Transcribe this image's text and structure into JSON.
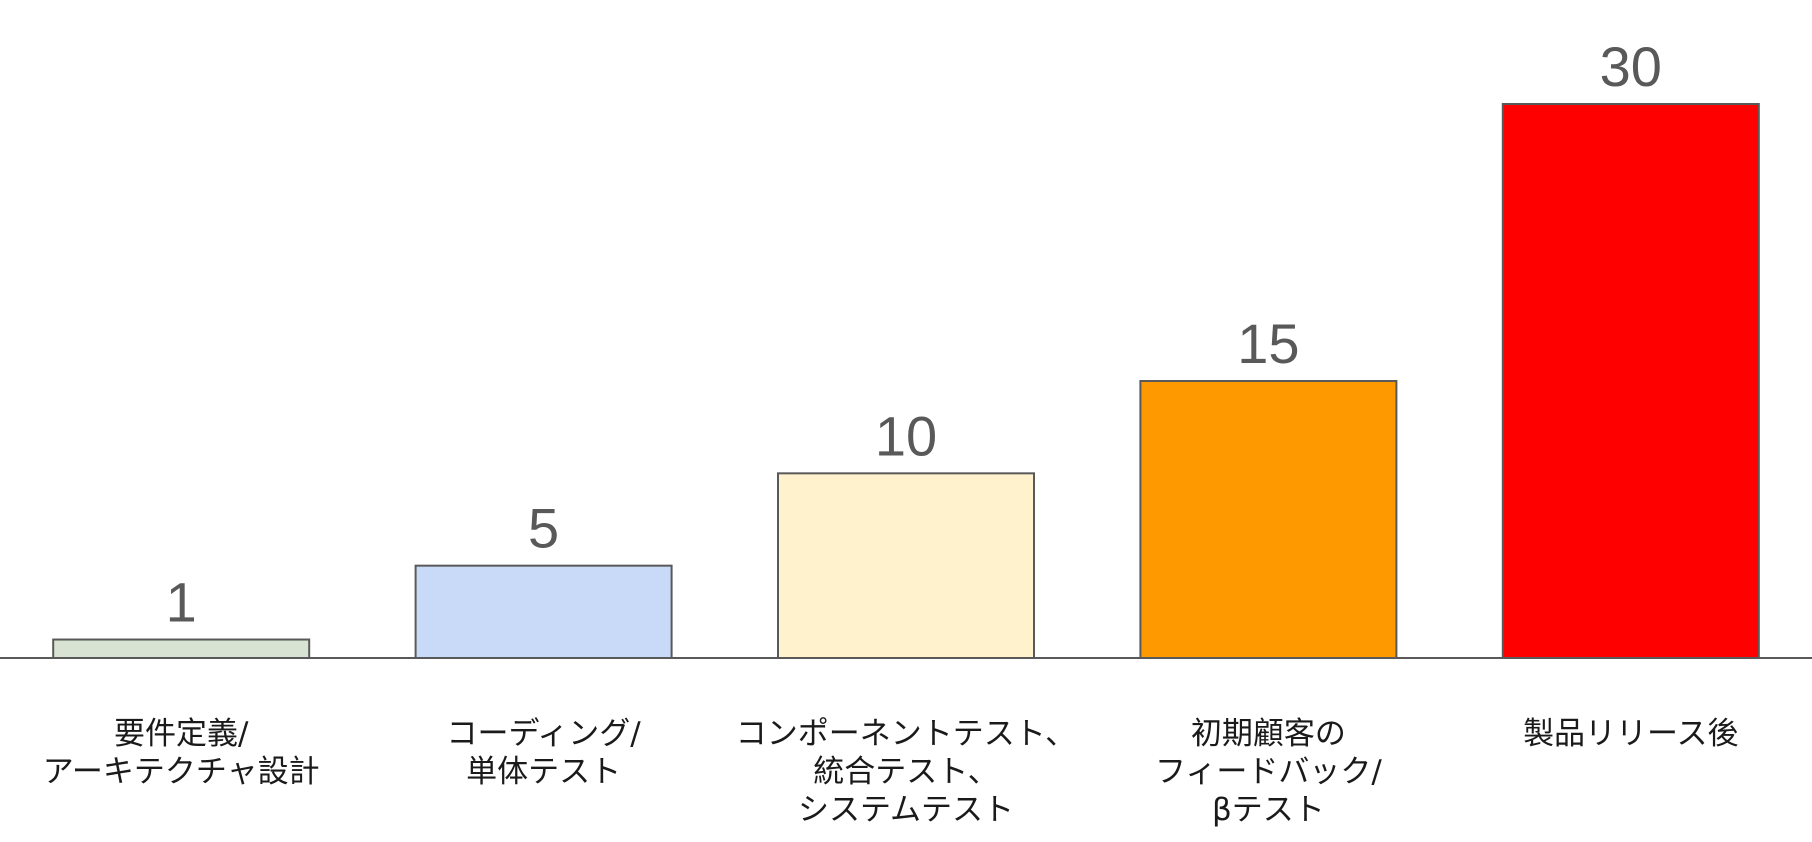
{
  "chart_data": {
    "type": "bar",
    "title": "",
    "xlabel": "",
    "ylabel": "",
    "ylim": [
      0,
      30
    ],
    "grid": false,
    "legend": "none",
    "categories": [
      [
        "要件定義/",
        "アーキテクチャ設計"
      ],
      [
        "コーディング/",
        "単体テスト"
      ],
      [
        "コンポーネントテスト、",
        "統合テスト、",
        "システムテスト"
      ],
      [
        "初期顧客の",
        "フィードバック/",
        "βテスト"
      ],
      [
        "製品リリース後"
      ]
    ],
    "values": [
      1,
      5,
      10,
      15,
      30
    ],
    "colors": [
      "#d9e3d3",
      "#c9daf8",
      "#fff2cc",
      "#ff9900",
      "#ff0000"
    ],
    "bar_outline_color": "#595959",
    "axis_color": "#595959"
  }
}
